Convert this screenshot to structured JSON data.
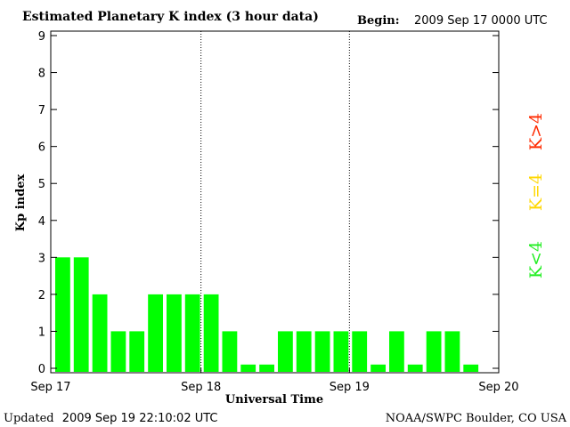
{
  "header": {
    "title": "Estimated Planetary K index (3 hour data)",
    "begin_label": "Begin:",
    "begin_value": "2009 Sep 17 0000 UTC"
  },
  "footer": {
    "updated_label": "Updated",
    "updated_value": "2009 Sep 19 22:10:02 UTC",
    "credit": "NOAA/SWPC Boulder, CO USA"
  },
  "legend": [
    {
      "label": "K>4",
      "color": "#ff2a00"
    },
    {
      "label": "K=4",
      "color": "#ffd700"
    },
    {
      "label": "K<4",
      "color": "#22ee22"
    }
  ],
  "colors": {
    "bar": "#00ff00"
  },
  "chart_data": {
    "type": "bar",
    "title": "Estimated Planetary K index (3 hour data)",
    "xlabel": "Universal Time",
    "ylabel": "Kp index",
    "ylim": [
      0,
      9
    ],
    "yticks": [
      0,
      1,
      2,
      3,
      4,
      5,
      6,
      7,
      8,
      9
    ],
    "xticks": [
      "Sep 17",
      "Sep 18",
      "Sep 19",
      "Sep 20"
    ],
    "day_separators": [
      "Sep 18",
      "Sep 19"
    ],
    "interval": "3 hour",
    "series": [
      {
        "values": [
          3,
          3,
          2,
          1,
          1,
          2,
          2,
          2,
          2,
          1,
          0.1,
          0.1,
          1,
          1,
          1,
          1,
          1,
          0.1,
          1,
          0.1,
          1,
          1,
          0.1
        ]
      }
    ]
  }
}
